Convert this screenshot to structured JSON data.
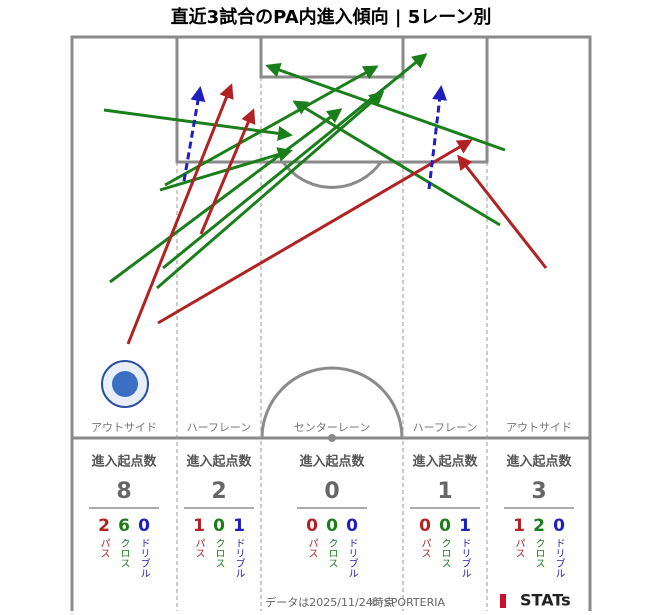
{
  "title": "直近3試合のPA内進入傾向 | 5レーン別",
  "lanes": [
    {
      "name": "アウトサイド",
      "stat_label": "進入起点数",
      "count": 8,
      "pass": 2,
      "cross": 6,
      "dribble": 0
    },
    {
      "name": "ハーフレーン",
      "stat_label": "進入起点数",
      "count": 2,
      "pass": 1,
      "cross": 0,
      "dribble": 1
    },
    {
      "name": "センターレーン",
      "stat_label": "進入起点数",
      "count": 0,
      "pass": 0,
      "cross": 0,
      "dribble": 0
    },
    {
      "name": "ハーフレーン",
      "stat_label": "進入起点数",
      "count": 1,
      "pass": 0,
      "cross": 0,
      "dribble": 1
    },
    {
      "name": "アウトサイド",
      "stat_label": "進入起点数",
      "count": 3,
      "pass": 1,
      "cross": 2,
      "dribble": 0
    }
  ],
  "type_labels": {
    "pass": "パス",
    "cross": "クロス",
    "dribble": "ドリブル"
  },
  "footer": {
    "note": "データは2025/11/24時点",
    "copyright": "© SPORTERIA",
    "brand": "STATs"
  }
}
